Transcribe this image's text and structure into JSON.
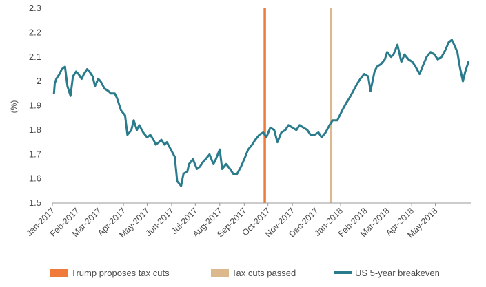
{
  "chart_data": {
    "type": "line",
    "title": "",
    "xlabel": "",
    "ylabel": "(%)",
    "ylim": [
      1.5,
      2.3
    ],
    "yticks": [
      1.5,
      1.6,
      1.7,
      1.8,
      1.9,
      2.0,
      2.1,
      2.2,
      2.3
    ],
    "ytick_labels": [
      "1.5",
      "1.6",
      "1.7",
      "1.8",
      "1.9",
      "2",
      "2.1",
      "2.2",
      "2.3"
    ],
    "xlim": [
      "2017-01-01",
      "2018-06-15"
    ],
    "xticks": [
      "2017-01-01",
      "2017-02-01",
      "2017-03-01",
      "2017-04-01",
      "2017-05-01",
      "2017-06-01",
      "2017-07-01",
      "2017-08-01",
      "2017-09-01",
      "2017-10-01",
      "2017-11-01",
      "2017-12-01",
      "2018-01-01",
      "2018-02-01",
      "2018-03-01",
      "2018-04-01",
      "2018-05-01"
    ],
    "xtick_labels": [
      "Jan-2017",
      "Feb-2017",
      "Mar-2017",
      "Apr-2017",
      "May-2017",
      "Jun-2017",
      "Jul-2017",
      "Aug-2017",
      "Sep-2017",
      "Oct-2017",
      "Nov-2017",
      "Dec-2017",
      "Jan-2018",
      "Feb-2018",
      "Mar-2018",
      "Apr-2018",
      "May-2018"
    ],
    "grid": false,
    "legend_position": "bottom",
    "events": [
      {
        "name": "Trump proposes tax cuts",
        "date": "2017-09-27",
        "color": "#f07a3a"
      },
      {
        "name": "Tax cuts passed",
        "date": "2017-12-20",
        "color": "#dcb98c"
      }
    ],
    "series": [
      {
        "name": "US 5-year breakeven",
        "color": "#2a7b8c",
        "x": [
          "2017-01-03",
          "2017-01-04",
          "2017-01-06",
          "2017-01-10",
          "2017-01-13",
          "2017-01-17",
          "2017-01-20",
          "2017-01-24",
          "2017-01-27",
          "2017-01-31",
          "2017-02-03",
          "2017-02-07",
          "2017-02-10",
          "2017-02-14",
          "2017-02-17",
          "2017-02-21",
          "2017-02-24",
          "2017-02-28",
          "2017-03-03",
          "2017-03-08",
          "2017-03-13",
          "2017-03-16",
          "2017-03-21",
          "2017-03-24",
          "2017-03-29",
          "2017-04-03",
          "2017-04-06",
          "2017-04-11",
          "2017-04-14",
          "2017-04-18",
          "2017-04-21",
          "2017-04-26",
          "2017-05-01",
          "2017-05-05",
          "2017-05-09",
          "2017-05-12",
          "2017-05-16",
          "2017-05-19",
          "2017-05-23",
          "2017-05-26",
          "2017-05-31",
          "2017-06-05",
          "2017-06-08",
          "2017-06-13",
          "2017-06-16",
          "2017-06-21",
          "2017-06-23",
          "2017-06-28",
          "2017-07-03",
          "2017-07-07",
          "2017-07-11",
          "2017-07-14",
          "2017-07-19",
          "2017-07-24",
          "2017-07-27",
          "2017-08-01",
          "2017-08-04",
          "2017-08-09",
          "2017-08-14",
          "2017-08-18",
          "2017-08-23",
          "2017-08-28",
          "2017-09-01",
          "2017-09-06",
          "2017-09-11",
          "2017-09-15",
          "2017-09-20",
          "2017-09-25",
          "2017-09-29",
          "2017-10-04",
          "2017-10-09",
          "2017-10-13",
          "2017-10-18",
          "2017-10-23",
          "2017-10-27",
          "2017-11-01",
          "2017-11-06",
          "2017-11-10",
          "2017-11-15",
          "2017-11-20",
          "2017-11-24",
          "2017-11-29",
          "2017-12-04",
          "2017-12-08",
          "2017-12-13",
          "2017-12-18",
          "2017-12-22",
          "2017-12-28",
          "2018-01-03",
          "2018-01-08",
          "2018-01-12",
          "2018-01-17",
          "2018-01-22",
          "2018-01-26",
          "2018-01-31",
          "2018-02-05",
          "2018-02-08",
          "2018-02-13",
          "2018-02-16",
          "2018-02-21",
          "2018-02-26",
          "2018-03-01",
          "2018-03-06",
          "2018-03-09",
          "2018-03-14",
          "2018-03-19",
          "2018-03-23",
          "2018-03-28",
          "2018-04-02",
          "2018-04-06",
          "2018-04-11",
          "2018-04-16",
          "2018-04-20",
          "2018-04-25",
          "2018-04-30",
          "2018-05-04",
          "2018-05-09",
          "2018-05-14",
          "2018-05-18",
          "2018-05-22",
          "2018-05-25",
          "2018-05-29",
          "2018-06-01",
          "2018-06-05",
          "2018-06-08",
          "2018-06-12"
        ],
        "y": [
          1.95,
          1.99,
          2.01,
          2.03,
          2.05,
          2.06,
          1.98,
          1.94,
          2.02,
          2.04,
          2.03,
          2.01,
          2.03,
          2.05,
          2.04,
          2.02,
          1.98,
          2.01,
          2.0,
          1.97,
          1.96,
          1.95,
          1.95,
          1.93,
          1.88,
          1.86,
          1.78,
          1.8,
          1.84,
          1.8,
          1.82,
          1.79,
          1.77,
          1.78,
          1.76,
          1.74,
          1.75,
          1.76,
          1.74,
          1.75,
          1.72,
          1.69,
          1.59,
          1.57,
          1.62,
          1.63,
          1.66,
          1.68,
          1.64,
          1.65,
          1.67,
          1.68,
          1.7,
          1.66,
          1.68,
          1.72,
          1.64,
          1.66,
          1.64,
          1.62,
          1.62,
          1.65,
          1.68,
          1.72,
          1.74,
          1.76,
          1.78,
          1.79,
          1.77,
          1.81,
          1.8,
          1.75,
          1.79,
          1.8,
          1.82,
          1.81,
          1.8,
          1.82,
          1.81,
          1.8,
          1.78,
          1.78,
          1.79,
          1.77,
          1.79,
          1.82,
          1.84,
          1.84,
          1.88,
          1.91,
          1.93,
          1.96,
          1.99,
          2.01,
          2.03,
          2.02,
          1.96,
          2.04,
          2.06,
          2.07,
          2.09,
          2.12,
          2.1,
          2.11,
          2.15,
          2.08,
          2.11,
          2.09,
          2.08,
          2.06,
          2.03,
          2.07,
          2.1,
          2.12,
          2.11,
          2.09,
          2.1,
          2.13,
          2.16,
          2.17,
          2.15,
          2.12,
          2.06,
          2.0,
          2.04,
          2.08
        ]
      }
    ]
  },
  "legend": {
    "items": [
      {
        "label": "Trump proposes tax cuts",
        "color": "#f07a3a",
        "kind": "bar"
      },
      {
        "label": "Tax cuts passed",
        "color": "#dcb98c",
        "kind": "bar"
      },
      {
        "label": "US 5-year breakeven",
        "color": "#2a7b8c",
        "kind": "line"
      }
    ]
  }
}
